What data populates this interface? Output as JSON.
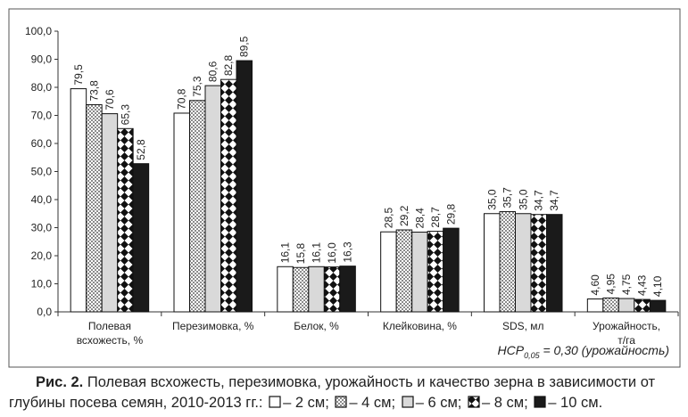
{
  "chart_data": {
    "type": "bar",
    "categories": [
      "Полевая всхожесть, %",
      "Перезимовка, %",
      "Белок, %",
      "Клейковина, %",
      "SDS, мл",
      "Урожайность, т/га"
    ],
    "series": [
      {
        "name": "– 2 см;",
        "color": "#ffffff",
        "pattern": "solid",
        "values": [
          79.5,
          70.8,
          16.1,
          28.5,
          35.0,
          4.6
        ],
        "value_labels": [
          "79,5",
          "70,8",
          "16,1",
          "28,5",
          "35,0",
          "4,60"
        ]
      },
      {
        "name": "– 4 см;",
        "color": "#8a8a8a",
        "pattern": "checker",
        "values": [
          73.8,
          75.3,
          15.8,
          29.2,
          35.7,
          4.95
        ],
        "value_labels": [
          "73,8",
          "75,3",
          "15,8",
          "29,2",
          "35,7",
          "4,95"
        ]
      },
      {
        "name": "– 6 см;",
        "color": "#d9d9d9",
        "pattern": "solid",
        "values": [
          70.6,
          80.6,
          16.1,
          28.4,
          35.0,
          4.75
        ],
        "value_labels": [
          "70,6",
          "80,6",
          "16,1",
          "28,4",
          "35,0",
          "4,75"
        ]
      },
      {
        "name": "– 8 см;",
        "color": "#111111",
        "pattern": "diamond",
        "values": [
          65.3,
          82.8,
          16.0,
          28.7,
          34.7,
          4.43
        ],
        "value_labels": [
          "65,3",
          "82,8",
          "16,0",
          "28,7",
          "34,7",
          "4,43"
        ]
      },
      {
        "name": "– 10 см.",
        "color": "#1a1a1a",
        "pattern": "solid",
        "values": [
          52.8,
          89.5,
          16.3,
          29.8,
          34.7,
          4.1
        ],
        "value_labels": [
          "52,8",
          "89,5",
          "16,3",
          "29,8",
          "34,7",
          "4,10"
        ]
      }
    ],
    "ylim": [
      0,
      100
    ],
    "yticks": [
      {
        "value": 0,
        "label": "0,0"
      },
      {
        "value": 10,
        "label": "10,0"
      },
      {
        "value": 20,
        "label": "20,0"
      },
      {
        "value": 30,
        "label": "30,0"
      },
      {
        "value": 40,
        "label": "40,0"
      },
      {
        "value": 50,
        "label": "50,0"
      },
      {
        "value": 60,
        "label": "60,0"
      },
      {
        "value": 70,
        "label": "70,0"
      },
      {
        "value": 80,
        "label": "80,0"
      },
      {
        "value": 90,
        "label": "90,0"
      },
      {
        "value": 100,
        "label": "100,0"
      }
    ],
    "grid": false,
    "annotation": {
      "main": "НСР",
      "subscript": "0,05",
      "rest": " = 0,30 (урожайность)"
    },
    "caption": {
      "label": "Рис. 2.",
      "text": " Полевая всхожесть, перезимовка, урожайность и качество зерна в зависимости от глубины посева семян, 2010-2013 гг.:"
    }
  }
}
